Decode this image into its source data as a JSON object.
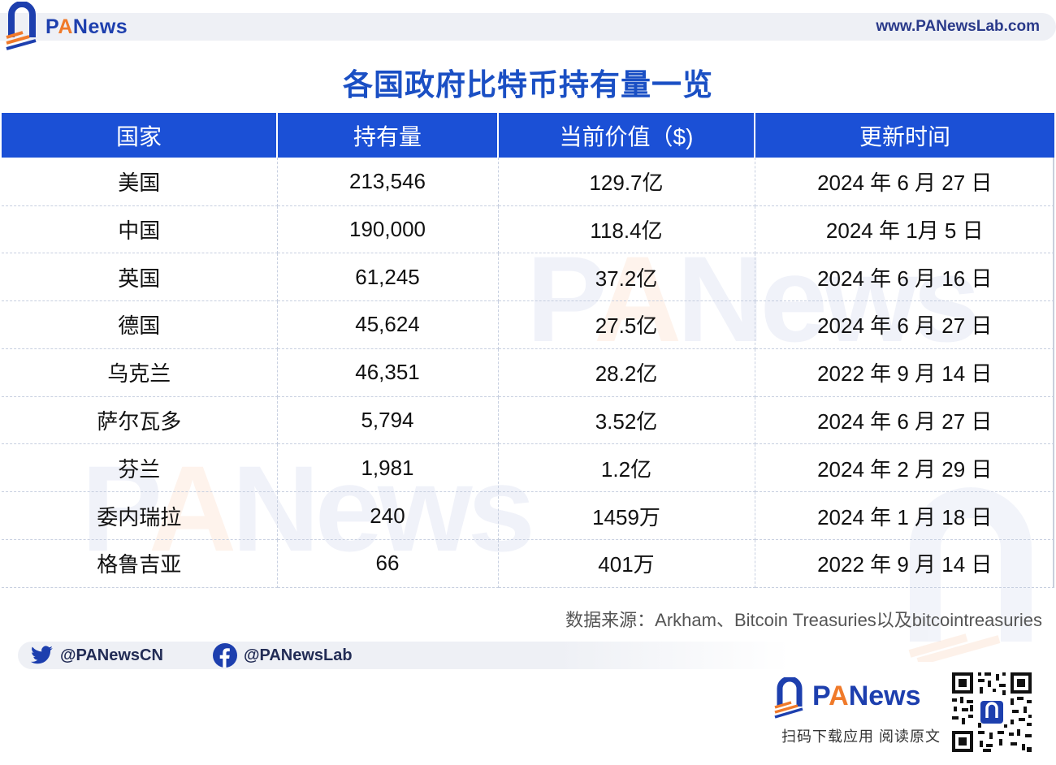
{
  "header": {
    "brand": {
      "pa_p": "P",
      "pa_a": "A",
      "rest": "News"
    },
    "url": "www.PANewsLab.com"
  },
  "title": "各国政府比特币持有量一览",
  "table": {
    "headers": [
      "国家",
      "持有量",
      "当前价值（$)",
      "更新时间"
    ],
    "rows": [
      [
        "美国",
        "213,546",
        "129.7亿",
        "2024 年 6 月 27 日"
      ],
      [
        "中国",
        "190,000",
        "118.4亿",
        "2024 年 1月 5 日"
      ],
      [
        "英国",
        "61,245",
        "37.2亿",
        "2024 年 6 月 16 日"
      ],
      [
        "德国",
        "45,624",
        "27.5亿",
        "2024 年 6 月 27 日"
      ],
      [
        "乌克兰",
        "46,351",
        "28.2亿",
        "2022 年 9 月 14 日"
      ],
      [
        "萨尔瓦多",
        "5,794",
        "3.52亿",
        "2024 年 6 月 27 日"
      ],
      [
        "芬兰",
        "1,981",
        "1.2亿",
        "2024 年 2 月 29 日"
      ],
      [
        "委内瑞拉",
        "240",
        "1459万",
        "2024 年 1 月 18 日"
      ],
      [
        "格鲁吉亚",
        "66",
        "401万",
        "2022 年 9 月 14 日"
      ]
    ]
  },
  "source": "数据来源：Arkham、Bitcoin Treasuries以及bitcointreasuries",
  "social": {
    "twitter": "@PANewsCN",
    "facebook": "@PANewsLab"
  },
  "footer": {
    "brand": {
      "pa_p": "P",
      "pa_a": "A",
      "rest": "News"
    },
    "caption": "扫码下载应用  阅读原文"
  },
  "colors": {
    "brand_blue": "#1d3fae",
    "header_blue": "#1b50d6",
    "accent_orange": "#f07a2a"
  },
  "icons": [
    "panews-logo-icon",
    "twitter-icon",
    "facebook-icon",
    "qr-code-icon"
  ]
}
